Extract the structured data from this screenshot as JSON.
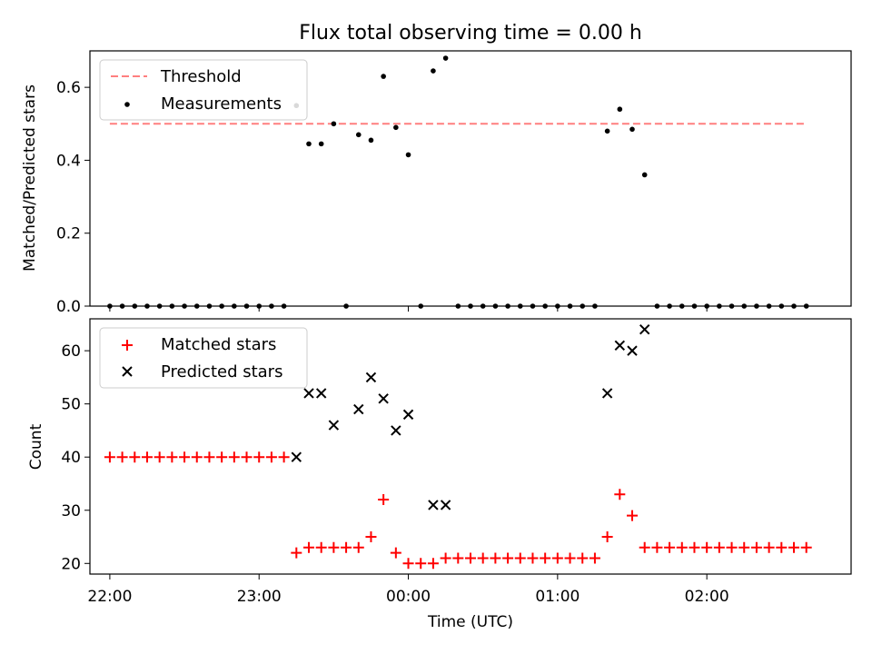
{
  "figure": {
    "title": "Flux total observing time = 0.00 h"
  },
  "chart_data": [
    {
      "type": "scatter",
      "ylabel": "Matched/Predicted stars",
      "ylim": [
        0,
        0.7
      ],
      "yticks": [
        "0.0",
        "0.2",
        "0.4",
        "0.6"
      ],
      "ytick_values": [
        0,
        0.2,
        0.4,
        0.6
      ],
      "xlim": [
        "21:52",
        "02:58"
      ],
      "xticks": [
        "22:00",
        "23:00",
        "00:00",
        "01:00",
        "02:00"
      ],
      "legend": {
        "position": "upper-left"
      },
      "series": [
        {
          "name": "Threshold",
          "kind": "dashed-line",
          "color": "#ff7f7f",
          "x": [
            "22:00",
            "02:40"
          ],
          "y": [
            0.5,
            0.5
          ]
        },
        {
          "name": "Measurements",
          "kind": "dot",
          "color": "#000000",
          "points": [
            [
              "22:00",
              0.0
            ],
            [
              "22:05",
              0.0
            ],
            [
              "22:10",
              0.0
            ],
            [
              "22:15",
              0.0
            ],
            [
              "22:20",
              0.0
            ],
            [
              "22:25",
              0.0
            ],
            [
              "22:30",
              0.0
            ],
            [
              "22:35",
              0.0
            ],
            [
              "22:40",
              0.0
            ],
            [
              "22:45",
              0.0
            ],
            [
              "22:50",
              0.0
            ],
            [
              "22:55",
              0.0
            ],
            [
              "23:00",
              0.0
            ],
            [
              "23:05",
              0.0
            ],
            [
              "23:10",
              0.0
            ],
            [
              "23:15",
              0.55
            ],
            [
              "23:20",
              0.445
            ],
            [
              "23:25",
              0.445
            ],
            [
              "23:30",
              0.5
            ],
            [
              "23:35",
              0.0
            ],
            [
              "23:40",
              0.47
            ],
            [
              "23:45",
              0.455
            ],
            [
              "23:50",
              0.63
            ],
            [
              "23:55",
              0.49
            ],
            [
              "00:00",
              0.415
            ],
            [
              "00:05",
              0.0
            ],
            [
              "00:10",
              0.645
            ],
            [
              "00:15",
              0.68
            ],
            [
              "00:20",
              0.0
            ],
            [
              "00:25",
              0.0
            ],
            [
              "00:30",
              0.0
            ],
            [
              "00:35",
              0.0
            ],
            [
              "00:40",
              0.0
            ],
            [
              "00:45",
              0.0
            ],
            [
              "00:50",
              0.0
            ],
            [
              "00:55",
              0.0
            ],
            [
              "01:00",
              0.0
            ],
            [
              "01:05",
              0.0
            ],
            [
              "01:10",
              0.0
            ],
            [
              "01:15",
              0.0
            ],
            [
              "01:20",
              0.48
            ],
            [
              "01:25",
              0.54
            ],
            [
              "01:30",
              0.485
            ],
            [
              "01:35",
              0.36
            ],
            [
              "01:40",
              0.0
            ],
            [
              "01:45",
              0.0
            ],
            [
              "01:50",
              0.0
            ],
            [
              "01:55",
              0.0
            ],
            [
              "02:00",
              0.0
            ],
            [
              "02:05",
              0.0
            ],
            [
              "02:10",
              0.0
            ],
            [
              "02:15",
              0.0
            ],
            [
              "02:20",
              0.0
            ],
            [
              "02:25",
              0.0
            ],
            [
              "02:30",
              0.0
            ],
            [
              "02:35",
              0.0
            ],
            [
              "02:40",
              0.0
            ]
          ]
        }
      ]
    },
    {
      "type": "scatter",
      "xlabel": "Time (UTC)",
      "ylabel": "Count",
      "ylim": [
        18,
        66
      ],
      "yticks": [
        "20",
        "30",
        "40",
        "50",
        "60"
      ],
      "ytick_values": [
        20,
        30,
        40,
        50,
        60
      ],
      "xlim": [
        "21:52",
        "02:58"
      ],
      "xticks": [
        "22:00",
        "23:00",
        "00:00",
        "01:00",
        "02:00"
      ],
      "legend": {
        "position": "upper-left"
      },
      "series": [
        {
          "name": "Matched stars",
          "kind": "plus",
          "color": "#ff0000",
          "points": [
            [
              "22:00",
              40
            ],
            [
              "22:05",
              40
            ],
            [
              "22:10",
              40
            ],
            [
              "22:15",
              40
            ],
            [
              "22:20",
              40
            ],
            [
              "22:25",
              40
            ],
            [
              "22:30",
              40
            ],
            [
              "22:35",
              40
            ],
            [
              "22:40",
              40
            ],
            [
              "22:45",
              40
            ],
            [
              "22:50",
              40
            ],
            [
              "22:55",
              40
            ],
            [
              "23:00",
              40
            ],
            [
              "23:05",
              40
            ],
            [
              "23:10",
              40
            ],
            [
              "23:15",
              22
            ],
            [
              "23:20",
              23
            ],
            [
              "23:25",
              23
            ],
            [
              "23:30",
              23
            ],
            [
              "23:35",
              23
            ],
            [
              "23:40",
              23
            ],
            [
              "23:45",
              25
            ],
            [
              "23:50",
              32
            ],
            [
              "23:55",
              22
            ],
            [
              "00:00",
              20
            ],
            [
              "00:05",
              20
            ],
            [
              "00:10",
              20
            ],
            [
              "00:15",
              21
            ],
            [
              "00:20",
              21
            ],
            [
              "00:25",
              21
            ],
            [
              "00:30",
              21
            ],
            [
              "00:35",
              21
            ],
            [
              "00:40",
              21
            ],
            [
              "00:45",
              21
            ],
            [
              "00:50",
              21
            ],
            [
              "00:55",
              21
            ],
            [
              "01:00",
              21
            ],
            [
              "01:05",
              21
            ],
            [
              "01:10",
              21
            ],
            [
              "01:15",
              21
            ],
            [
              "01:20",
              25
            ],
            [
              "01:25",
              33
            ],
            [
              "01:30",
              29
            ],
            [
              "01:35",
              23
            ],
            [
              "01:40",
              23
            ],
            [
              "01:45",
              23
            ],
            [
              "01:50",
              23
            ],
            [
              "01:55",
              23
            ],
            [
              "02:00",
              23
            ],
            [
              "02:05",
              23
            ],
            [
              "02:10",
              23
            ],
            [
              "02:15",
              23
            ],
            [
              "02:20",
              23
            ],
            [
              "02:25",
              23
            ],
            [
              "02:30",
              23
            ],
            [
              "02:35",
              23
            ],
            [
              "02:40",
              23
            ]
          ]
        },
        {
          "name": "Predicted stars",
          "kind": "cross",
          "color": "#000000",
          "points": [
            [
              "23:15",
              40
            ],
            [
              "23:20",
              52
            ],
            [
              "23:25",
              52
            ],
            [
              "23:30",
              46
            ],
            [
              "23:40",
              49
            ],
            [
              "23:45",
              55
            ],
            [
              "23:50",
              51
            ],
            [
              "23:55",
              45
            ],
            [
              "00:00",
              48
            ],
            [
              "00:10",
              31
            ],
            [
              "00:15",
              31
            ],
            [
              "01:20",
              52
            ],
            [
              "01:25",
              61
            ],
            [
              "01:30",
              60
            ],
            [
              "01:35",
              64
            ]
          ]
        }
      ]
    }
  ]
}
